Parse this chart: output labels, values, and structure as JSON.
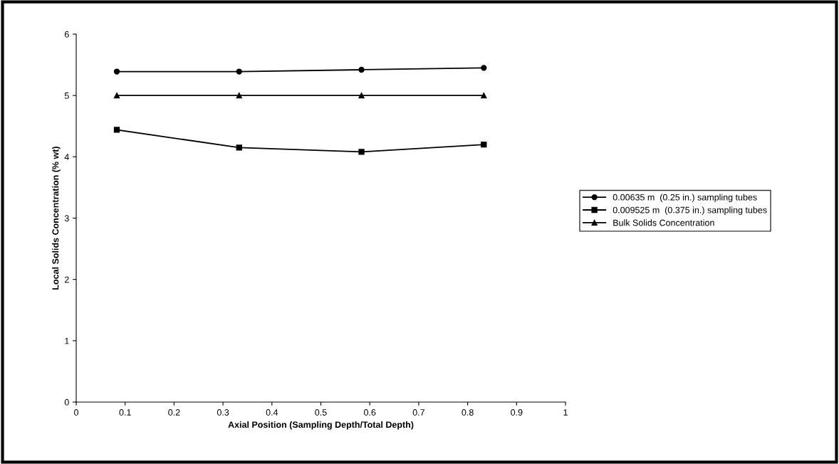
{
  "chart_data": {
    "type": "line",
    "xlabel": "Axial Position (Sampling Depth/Total Depth)",
    "ylabel": "Local Solids Concentration (% wt)",
    "x": [
      0.083,
      0.333,
      0.583,
      0.833
    ],
    "series": [
      {
        "name": "0.00635 m  (0.25 in.) sampling tubes",
        "color": "#000000",
        "marker": "circle",
        "values": [
          5.39,
          5.39,
          5.42,
          5.45
        ]
      },
      {
        "name": "0.009525 m  (0.375 in.) sampling tubes",
        "color": "#000000",
        "marker": "square",
        "values": [
          4.44,
          4.15,
          4.08,
          4.2
        ]
      },
      {
        "name": "Bulk Solids Concentration",
        "color": "#000000",
        "marker": "triangle",
        "values": [
          5.0,
          5.0,
          5.0,
          5.0
        ]
      }
    ],
    "xlim": [
      0,
      1
    ],
    "xticks": [
      0,
      0.1,
      0.2,
      0.3,
      0.4,
      0.5,
      0.6,
      0.7,
      0.8,
      0.9,
      1
    ],
    "ylim": [
      0,
      6
    ],
    "yticks": [
      0,
      1,
      2,
      3,
      4,
      5,
      6
    ],
    "grid": false,
    "legend": "right",
    "line_style": "solid"
  }
}
